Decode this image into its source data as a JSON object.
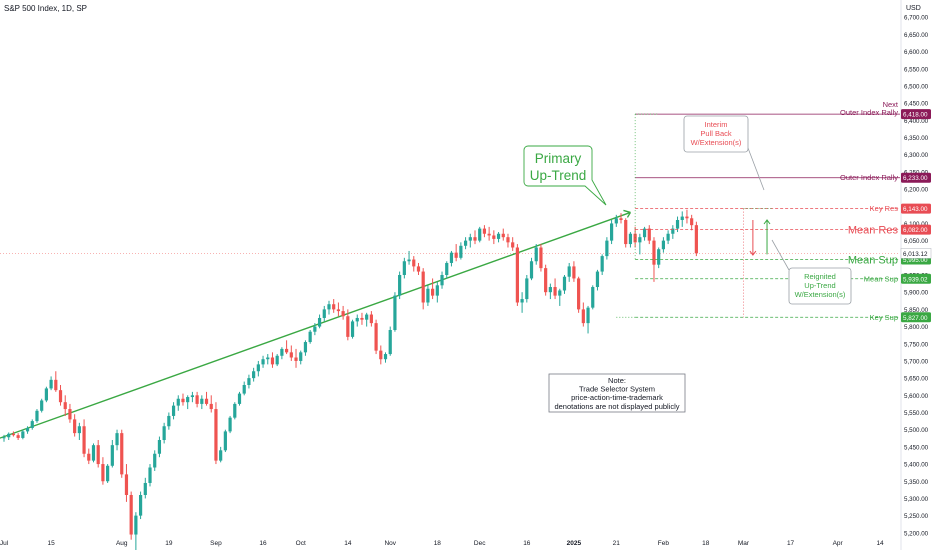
{
  "header": {
    "title": "S&P 500 Index, 1D, SP",
    "currency": "USD"
  },
  "colors": {
    "up": "#26a69a",
    "down": "#ef5350",
    "green": "#3aa843",
    "red": "#e84c54",
    "purple": "#8b1a58",
    "last": "#ef5350"
  },
  "chart_data": {
    "type": "candlestick",
    "y_axis": {
      "min": 5150,
      "max": 6750,
      "scale": "linear",
      "ticks": [
        "5,200.00",
        "5,250.00",
        "5,300.00",
        "5,350.00",
        "5,400.00",
        "5,450.00",
        "5,500.00",
        "5,550.00",
        "5,600.00",
        "5,650.00",
        "5,700.00",
        "5,750.00",
        "5,800.00",
        "5,850.00",
        "5,900.00",
        "5,950.00",
        "6,000.00",
        "6,050.00",
        "6,100.00",
        "6,150.00",
        "6,200.00",
        "6,250.00",
        "6,300.00",
        "6,350.00",
        "6,400.00",
        "6,450.00",
        "6,500.00",
        "6,550.00",
        "6,600.00",
        "6,650.00",
        "6,700.00"
      ],
      "tick_values": [
        5200,
        5250,
        5300,
        5350,
        5400,
        5450,
        5500,
        5550,
        5600,
        5650,
        5700,
        5750,
        5800,
        5850,
        5900,
        5950,
        6000,
        6050,
        6100,
        6150,
        6200,
        6250,
        6300,
        6350,
        6400,
        6450,
        6500,
        6550,
        6600,
        6650,
        6700
      ]
    },
    "x_axis": {
      "labels": [
        "Jul",
        "15",
        "Aug",
        "19",
        "Sep",
        "16",
        "Oct",
        "14",
        "Nov",
        "18",
        "Dec",
        "16",
        "2025",
        "21",
        "Feb",
        "18",
        "Mar",
        "17",
        "Apr",
        "14"
      ],
      "label_bar_index": [
        0,
        10,
        25,
        35,
        45,
        55,
        63,
        73,
        82,
        92,
        101,
        111,
        121,
        130,
        140,
        149,
        157,
        167,
        177,
        186
      ]
    },
    "last_price": {
      "label": "6,013.12",
      "value": 6013.12
    },
    "trend_line": {
      "label": "Primary Up-Trend",
      "from": {
        "bar": -2,
        "value": 5470
      },
      "to": {
        "bar": 133,
        "value": 6132
      }
    },
    "levels": [
      {
        "name": "Next Outer Index Rally",
        "value": 6418,
        "price_label": "6,418.00",
        "text": [
          "Next",
          "Outer Index Rally"
        ],
        "color": "purple",
        "style": "solid"
      },
      {
        "name": "Outer Index Rally",
        "value": 6233,
        "price_label": "6,233.00",
        "text": [
          "Outer Index Rally"
        ],
        "color": "purple",
        "style": "solid"
      },
      {
        "name": "Key Res",
        "value": 6143,
        "price_label": "6,143.00",
        "text": [
          "Key Res"
        ],
        "color": "red",
        "style": "dashed"
      },
      {
        "name": "Mean Res",
        "value": 6082,
        "price_label": "6,082.00",
        "text": [
          "Mean Res"
        ],
        "color": "red",
        "style": "dashed"
      },
      {
        "name": "Mean Sup",
        "value": 5995,
        "price_label": "5,995.00",
        "text": [
          "Mean Sup"
        ],
        "color": "green",
        "style": "dashed"
      },
      {
        "name": "Mean Sup",
        "value": 5939.02,
        "price_label": "5,939.02",
        "text": [
          "Mean Sup"
        ],
        "color": "green",
        "style": "dashed"
      },
      {
        "name": "Key Sup",
        "value": 5827,
        "price_label": "5,827.00",
        "text": [
          "Key Sup"
        ],
        "color": "green",
        "style": "dashed"
      }
    ],
    "annotations": [
      {
        "name": "interim-pullback",
        "lines": [
          "Interim",
          "Pull Back",
          "W/Extension(s)"
        ],
        "color": "red"
      },
      {
        "name": "reignited-uptrend",
        "lines": [
          "Reignited",
          "Up-Trend",
          "W/Extension(s)"
        ],
        "color": "green"
      },
      {
        "name": "note",
        "lines": [
          "Note:",
          "Trade Selector System",
          "price-action-time-trademark",
          "denotations are not displayed publicly"
        ],
        "color": "dark"
      }
    ],
    "ohlc": [
      [
        5475,
        5485,
        5465,
        5478
      ],
      [
        5478,
        5492,
        5470,
        5488
      ],
      [
        5488,
        5495,
        5480,
        5484
      ],
      [
        5484,
        5490,
        5470,
        5476
      ],
      [
        5476,
        5500,
        5472,
        5495
      ],
      [
        5495,
        5510,
        5488,
        5505
      ],
      [
        5505,
        5530,
        5500,
        5525
      ],
      [
        5525,
        5560,
        5520,
        5555
      ],
      [
        5555,
        5590,
        5550,
        5585
      ],
      [
        5585,
        5625,
        5580,
        5620
      ],
      [
        5620,
        5655,
        5615,
        5645
      ],
      [
        5645,
        5670,
        5610,
        5615
      ],
      [
        5615,
        5630,
        5570,
        5580
      ],
      [
        5580,
        5600,
        5540,
        5560
      ],
      [
        5560,
        5575,
        5520,
        5530
      ],
      [
        5530,
        5545,
        5480,
        5490
      ],
      [
        5490,
        5520,
        5470,
        5510
      ],
      [
        5510,
        5530,
        5420,
        5430
      ],
      [
        5430,
        5445,
        5400,
        5410
      ],
      [
        5410,
        5460,
        5405,
        5455
      ],
      [
        5455,
        5470,
        5390,
        5400
      ],
      [
        5400,
        5420,
        5340,
        5350
      ],
      [
        5350,
        5400,
        5345,
        5395
      ],
      [
        5395,
        5470,
        5390,
        5455
      ],
      [
        5455,
        5500,
        5440,
        5490
      ],
      [
        5490,
        5500,
        5360,
        5370
      ],
      [
        5370,
        5400,
        5290,
        5310
      ],
      [
        5310,
        5320,
        5180,
        5195
      ],
      [
        5195,
        5260,
        5150,
        5250
      ],
      [
        5250,
        5320,
        5240,
        5310
      ],
      [
        5310,
        5360,
        5300,
        5345
      ],
      [
        5345,
        5400,
        5335,
        5390
      ],
      [
        5390,
        5440,
        5380,
        5430
      ],
      [
        5430,
        5480,
        5420,
        5470
      ],
      [
        5470,
        5520,
        5460,
        5510
      ],
      [
        5510,
        5550,
        5500,
        5540
      ],
      [
        5540,
        5580,
        5530,
        5570
      ],
      [
        5570,
        5600,
        5555,
        5590
      ],
      [
        5590,
        5605,
        5570,
        5580
      ],
      [
        5580,
        5600,
        5560,
        5595
      ],
      [
        5595,
        5610,
        5580,
        5600
      ],
      [
        5600,
        5610,
        5565,
        5575
      ],
      [
        5575,
        5600,
        5560,
        5590
      ],
      [
        5590,
        5610,
        5570,
        5575
      ],
      [
        5575,
        5600,
        5550,
        5560
      ],
      [
        5560,
        5580,
        5400,
        5410
      ],
      [
        5410,
        5450,
        5405,
        5440
      ],
      [
        5440,
        5500,
        5435,
        5495
      ],
      [
        5495,
        5540,
        5490,
        5535
      ],
      [
        5535,
        5580,
        5530,
        5575
      ],
      [
        5575,
        5610,
        5570,
        5605
      ],
      [
        5605,
        5640,
        5600,
        5630
      ],
      [
        5630,
        5660,
        5620,
        5650
      ],
      [
        5650,
        5680,
        5640,
        5670
      ],
      [
        5670,
        5700,
        5655,
        5690
      ],
      [
        5690,
        5715,
        5680,
        5705
      ],
      [
        5705,
        5720,
        5690,
        5710
      ],
      [
        5710,
        5725,
        5680,
        5690
      ],
      [
        5690,
        5720,
        5685,
        5715
      ],
      [
        5715,
        5740,
        5705,
        5735
      ],
      [
        5735,
        5760,
        5720,
        5725
      ],
      [
        5725,
        5745,
        5700,
        5710
      ],
      [
        5710,
        5735,
        5680,
        5700
      ],
      [
        5700,
        5730,
        5690,
        5725
      ],
      [
        5725,
        5760,
        5715,
        5755
      ],
      [
        5755,
        5790,
        5750,
        5785
      ],
      [
        5785,
        5810,
        5775,
        5800
      ],
      [
        5800,
        5835,
        5795,
        5825
      ],
      [
        5825,
        5860,
        5815,
        5850
      ],
      [
        5850,
        5875,
        5835,
        5865
      ],
      [
        5865,
        5880,
        5840,
        5850
      ],
      [
        5850,
        5870,
        5830,
        5845
      ],
      [
        5845,
        5860,
        5820,
        5830
      ],
      [
        5830,
        5850,
        5760,
        5770
      ],
      [
        5770,
        5820,
        5765,
        5815
      ],
      [
        5815,
        5835,
        5800,
        5825
      ],
      [
        5825,
        5840,
        5805,
        5820
      ],
      [
        5820,
        5840,
        5800,
        5835
      ],
      [
        5835,
        5845,
        5800,
        5810
      ],
      [
        5810,
        5820,
        5720,
        5730
      ],
      [
        5730,
        5745,
        5690,
        5705
      ],
      [
        5705,
        5725,
        5695,
        5720
      ],
      [
        5720,
        5800,
        5715,
        5790
      ],
      [
        5790,
        5900,
        5785,
        5890
      ],
      [
        5890,
        5960,
        5880,
        5950
      ],
      [
        5950,
        6000,
        5940,
        5990
      ],
      [
        5990,
        6020,
        5980,
        5995
      ],
      [
        5995,
        6005,
        5960,
        5975
      ],
      [
        5975,
        5985,
        5950,
        5960
      ],
      [
        5960,
        5970,
        5850,
        5870
      ],
      [
        5870,
        5920,
        5860,
        5910
      ],
      [
        5910,
        5940,
        5880,
        5890
      ],
      [
        5890,
        5930,
        5870,
        5920
      ],
      [
        5920,
        5960,
        5910,
        5950
      ],
      [
        5950,
        5990,
        5940,
        5985
      ],
      [
        5985,
        6020,
        5975,
        6015
      ],
      [
        6015,
        6040,
        5990,
        6000
      ],
      [
        6000,
        6045,
        5995,
        6035
      ],
      [
        6035,
        6060,
        6025,
        6050
      ],
      [
        6050,
        6070,
        6030,
        6060
      ],
      [
        6060,
        6080,
        6040,
        6050
      ],
      [
        6050,
        6090,
        6045,
        6085
      ],
      [
        6085,
        6095,
        6060,
        6070
      ],
      [
        6070,
        6090,
        6050,
        6065
      ],
      [
        6065,
        6080,
        6040,
        6055
      ],
      [
        6055,
        6075,
        6045,
        6070
      ],
      [
        6070,
        6085,
        6050,
        6060
      ],
      [
        6060,
        6070,
        6030,
        6045
      ],
      [
        6045,
        6060,
        6020,
        6030
      ],
      [
        6030,
        6040,
        5860,
        5870
      ],
      [
        5870,
        5900,
        5840,
        5880
      ],
      [
        5880,
        5950,
        5870,
        5940
      ],
      [
        5940,
        6000,
        5935,
        5990
      ],
      [
        5990,
        6040,
        5980,
        6030
      ],
      [
        6030,
        6040,
        5960,
        5970
      ],
      [
        5970,
        5980,
        5890,
        5900
      ],
      [
        5900,
        5925,
        5880,
        5915
      ],
      [
        5915,
        5940,
        5880,
        5890
      ],
      [
        5890,
        5910,
        5860,
        5905
      ],
      [
        5905,
        5950,
        5895,
        5945
      ],
      [
        5945,
        5985,
        5930,
        5975
      ],
      [
        5975,
        5990,
        5930,
        5940
      ],
      [
        5940,
        5945,
        5840,
        5850
      ],
      [
        5850,
        5870,
        5800,
        5810
      ],
      [
        5810,
        5860,
        5780,
        5855
      ],
      [
        5855,
        5920,
        5850,
        5915
      ],
      [
        5915,
        5965,
        5905,
        5960
      ],
      [
        5960,
        6010,
        5950,
        6005
      ],
      [
        6005,
        6060,
        5995,
        6050
      ],
      [
        6050,
        6110,
        6040,
        6100
      ],
      [
        6100,
        6125,
        6090,
        6115
      ],
      [
        6115,
        6130,
        6100,
        6110
      ],
      [
        6110,
        6115,
        6030,
        6040
      ],
      [
        6040,
        6075,
        6030,
        6070
      ],
      [
        6070,
        6090,
        6030,
        6045
      ],
      [
        6045,
        6070,
        6010,
        6060
      ],
      [
        6060,
        6090,
        6050,
        6085
      ],
      [
        6085,
        6095,
        6040,
        6050
      ],
      [
        6050,
        6060,
        5930,
        5980
      ],
      [
        5980,
        6030,
        5970,
        6025
      ],
      [
        6025,
        6060,
        6015,
        6050
      ],
      [
        6050,
        6080,
        6040,
        6070
      ],
      [
        6070,
        6095,
        6055,
        6085
      ],
      [
        6085,
        6120,
        6075,
        6110
      ],
      [
        6110,
        6135,
        6090,
        6120
      ],
      [
        6120,
        6140,
        6100,
        6115
      ],
      [
        6115,
        6125,
        6080,
        6095
      ],
      [
        6095,
        6105,
        6005,
        6013
      ]
    ]
  }
}
